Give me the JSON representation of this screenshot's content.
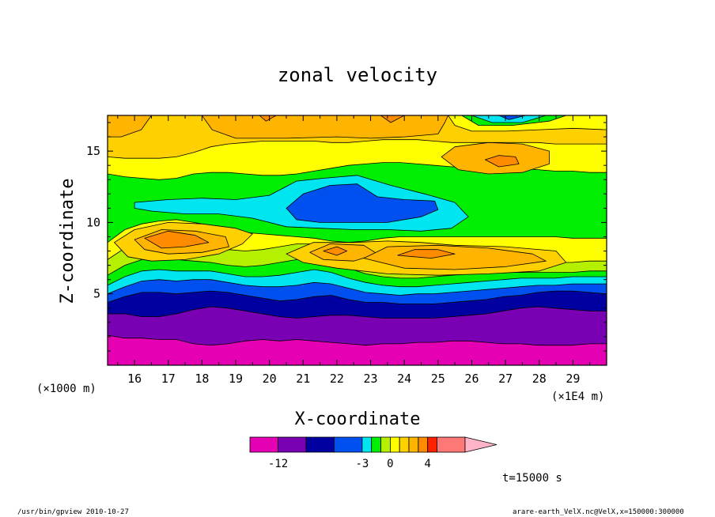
{
  "chart_data": {
    "type": "heatmap",
    "title": "zonal velocity",
    "xlabel": "X-coordinate",
    "ylabel": "Z-coordinate",
    "x_unit_left": "(×1000 m)",
    "x_unit_right": "(×1E4 m)",
    "xlim": [
      15.2,
      30
    ],
    "ylim": [
      0,
      17.5
    ],
    "x_ticks": [
      "16",
      "17",
      "18",
      "19",
      "20",
      "21",
      "22",
      "23",
      "24",
      "25",
      "26",
      "27",
      "28",
      "29"
    ],
    "y_ticks": [
      "5",
      "10",
      "15"
    ],
    "colorbar": {
      "labels": [
        "-12",
        "-3",
        "0",
        "4"
      ],
      "levels": [
        -15,
        -12,
        -9,
        -6,
        -3,
        -2,
        -1,
        0,
        1,
        2,
        3,
        4,
        5,
        8,
        11
      ],
      "colors": [
        "#e600b4",
        "#7a00b4",
        "#0000a0",
        "#0050f0",
        "#00e6f0",
        "#00ee00",
        "#b4f000",
        "#ffff00",
        "#ffd000",
        "#ffb400",
        "#ff8c00",
        "#ff2000",
        "#ff7878",
        "#ffb4c8"
      ]
    },
    "zones": [
      {
        "name": "z1",
        "color": "#e600b4",
        "top": [
          2.1,
          1.9,
          1.9,
          1.8,
          1.8,
          1.5,
          1.4,
          1.5,
          1.7,
          1.8,
          1.7,
          1.8,
          1.7,
          1.6,
          1.5,
          1.4,
          1.5,
          1.5,
          1.6,
          1.6,
          1.7,
          1.7,
          1.6,
          1.5,
          1.5,
          1.4,
          1.4,
          1.4,
          1.5,
          1.5
        ]
      },
      {
        "name": "z2",
        "color": "#7a00b4",
        "top": [
          3.6,
          3.6,
          3.4,
          3.4,
          3.6,
          3.9,
          4.1,
          4.0,
          3.8,
          3.6,
          3.4,
          3.3,
          3.4,
          3.5,
          3.5,
          3.4,
          3.3,
          3.3,
          3.3,
          3.3,
          3.4,
          3.5,
          3.6,
          3.8,
          4.0,
          4.1,
          4.0,
          3.9,
          3.8,
          3.8
        ]
      },
      {
        "name": "z3",
        "color": "#0000a0",
        "top": [
          4.4,
          4.8,
          5.1,
          5.1,
          5.0,
          5.1,
          5.2,
          5.1,
          4.9,
          4.7,
          4.5,
          4.6,
          4.8,
          4.9,
          4.6,
          4.4,
          4.4,
          4.3,
          4.3,
          4.3,
          4.4,
          4.5,
          4.6,
          4.8,
          4.9,
          5.1,
          5.2,
          5.2,
          5.1,
          5.0
        ]
      },
      {
        "name": "z4",
        "color": "#0050f0",
        "top": [
          5.0,
          5.5,
          5.9,
          6.0,
          5.9,
          6.0,
          6.0,
          5.8,
          5.6,
          5.5,
          5.5,
          5.6,
          5.8,
          5.7,
          5.4,
          5.1,
          5.0,
          4.9,
          5.0,
          5.0,
          5.1,
          5.2,
          5.3,
          5.4,
          5.5,
          5.6,
          5.6,
          5.7,
          5.7,
          5.7
        ]
      },
      {
        "name": "z5",
        "color": "#00e6f0",
        "top": [
          5.6,
          6.2,
          6.6,
          6.7,
          6.6,
          6.6,
          6.6,
          6.4,
          6.2,
          6.2,
          6.3,
          6.5,
          6.7,
          6.5,
          6.1,
          5.8,
          5.6,
          5.5,
          5.5,
          5.6,
          5.7,
          5.8,
          5.9,
          6.0,
          6.1,
          6.1,
          6.1,
          6.2,
          6.2,
          6.2
        ]
      },
      {
        "name": "z6",
        "color": "#00ee00",
        "top": [
          6.3,
          7.0,
          7.4,
          7.5,
          7.4,
          7.3,
          7.2,
          7.0,
          6.9,
          7.0,
          7.2,
          7.4,
          7.5,
          7.2,
          6.8,
          6.4,
          6.2,
          6.1,
          6.1,
          6.2,
          6.3,
          6.4,
          6.5,
          6.5,
          6.5,
          6.5,
          6.5,
          6.5,
          6.6,
          6.6
        ]
      },
      {
        "name": "z7",
        "color": "#b4f000",
        "top": [
          7.4,
          8.2,
          8.6,
          8.8,
          8.8,
          8.6,
          8.4,
          8.1,
          8.0,
          8.1,
          8.3,
          8.5,
          8.5,
          8.2,
          7.7,
          7.2,
          7.0,
          6.9,
          6.9,
          7.0,
          7.1,
          7.2,
          7.3,
          7.3,
          7.3,
          7.2,
          7.2,
          7.2,
          7.3,
          7.3
        ]
      },
      {
        "name": "z8",
        "color": "#ffff00",
        "top": [
          8.6,
          9.5,
          9.9,
          10.1,
          10.2,
          10.0,
          9.8,
          9.5,
          9.3,
          9.2,
          9.1,
          9.0,
          8.9,
          8.7,
          8.6,
          8.7,
          8.9,
          9.0,
          9.0,
          9.0,
          9.0,
          9.0,
          9.0,
          9.0,
          9.0,
          9.0,
          9.0,
          8.9,
          8.9,
          8.9
        ]
      },
      {
        "name": "z9",
        "color": "#00ee00",
        "top": [
          13.4,
          13.2,
          13.1,
          13.0,
          13.1,
          13.4,
          13.5,
          13.5,
          13.4,
          13.3,
          13.3,
          13.4,
          13.6,
          13.8,
          14.0,
          14.1,
          14.2,
          14.2,
          14.1,
          14.0,
          13.9,
          13.9,
          13.9,
          13.9,
          13.8,
          13.7,
          13.6,
          13.6,
          13.5,
          13.5
        ]
      },
      {
        "name": "z10",
        "color": "#ffff00",
        "top": [
          14.6,
          14.5,
          14.5,
          14.5,
          14.6,
          14.9,
          15.3,
          15.5,
          15.6,
          15.7,
          15.7,
          15.7,
          15.7,
          15.6,
          15.6,
          15.7,
          15.8,
          15.8,
          15.8,
          15.7,
          15.6,
          15.6,
          15.6,
          15.6,
          15.6,
          15.6,
          15.5,
          15.5,
          15.5,
          15.5
        ]
      },
      {
        "name": "z11",
        "color": "#ffd000",
        "top": [
          17.5,
          17.5,
          17.5,
          17.5,
          17.5,
          17.5,
          17.5,
          17.5,
          17.5,
          17.5,
          17.5,
          17.5,
          17.5,
          17.5,
          17.5,
          17.5,
          17.5,
          17.5,
          17.5,
          17.5,
          17.5,
          17.5,
          17.5,
          17.5,
          17.5,
          17.5,
          17.5,
          17.5,
          17.5,
          17.5
        ]
      }
    ],
    "features": [
      {
        "name": "cyan-band",
        "color": "#00e6f0",
        "pts": [
          [
            16.0,
            11.4
          ],
          [
            17.0,
            11.6
          ],
          [
            18.0,
            11.7
          ],
          [
            19.0,
            11.6
          ],
          [
            20.0,
            11.9
          ],
          [
            20.8,
            12.9
          ],
          [
            21.6,
            13.1
          ],
          [
            22.6,
            13.3
          ],
          [
            23.6,
            12.6
          ],
          [
            24.6,
            12.0
          ],
          [
            25.5,
            11.4
          ],
          [
            25.9,
            10.4
          ],
          [
            25.4,
            9.6
          ],
          [
            24.5,
            9.4
          ],
          [
            23.5,
            9.5
          ],
          [
            22.5,
            9.5
          ],
          [
            21.5,
            9.6
          ],
          [
            20.5,
            9.7
          ],
          [
            19.5,
            10.3
          ],
          [
            18.5,
            10.6
          ],
          [
            17.5,
            10.6
          ],
          [
            16.5,
            10.8
          ],
          [
            16.0,
            11.0
          ]
        ]
      },
      {
        "name": "blue-core",
        "color": "#0050f0",
        "pts": [
          [
            20.5,
            11.0
          ],
          [
            21.0,
            12.0
          ],
          [
            21.8,
            12.6
          ],
          [
            22.6,
            12.7
          ],
          [
            23.2,
            11.8
          ],
          [
            24.0,
            11.6
          ],
          [
            24.9,
            11.5
          ],
          [
            25.0,
            10.9
          ],
          [
            24.5,
            10.4
          ],
          [
            23.5,
            10.0
          ],
          [
            22.5,
            10.0
          ],
          [
            21.5,
            10.0
          ],
          [
            20.8,
            10.2
          ]
        ]
      },
      {
        "name": "gold-left",
        "color": "#ffd000",
        "pts": [
          [
            15.4,
            8.6
          ],
          [
            16.0,
            9.5
          ],
          [
            17.0,
            10.0
          ],
          [
            18.0,
            9.9
          ],
          [
            19.0,
            9.6
          ],
          [
            19.5,
            9.2
          ],
          [
            19.2,
            8.5
          ],
          [
            18.5,
            7.8
          ],
          [
            17.5,
            7.4
          ],
          [
            16.5,
            7.3
          ],
          [
            15.8,
            7.6
          ]
        ]
      },
      {
        "name": "dark-gold-left",
        "color": "#ffb400",
        "pts": [
          [
            16.0,
            8.8
          ],
          [
            16.8,
            9.5
          ],
          [
            17.8,
            9.4
          ],
          [
            18.7,
            9.0
          ],
          [
            18.8,
            8.3
          ],
          [
            18.0,
            7.9
          ],
          [
            17.0,
            7.8
          ],
          [
            16.3,
            8.1
          ]
        ]
      },
      {
        "name": "orange-left",
        "color": "#ff8c00",
        "pts": [
          [
            16.3,
            8.9
          ],
          [
            17.0,
            9.4
          ],
          [
            17.8,
            9.1
          ],
          [
            18.2,
            8.6
          ],
          [
            17.5,
            8.3
          ],
          [
            16.8,
            8.2
          ]
        ]
      },
      {
        "name": "gold-mid",
        "color": "#ffd000",
        "pts": [
          [
            20.5,
            7.8
          ],
          [
            21.3,
            8.6
          ],
          [
            22.5,
            8.6
          ],
          [
            23.5,
            8.7
          ],
          [
            24.5,
            8.6
          ],
          [
            25.5,
            8.4
          ],
          [
            27.0,
            8.3
          ],
          [
            28.5,
            8.0
          ],
          [
            28.8,
            7.2
          ],
          [
            28.0,
            6.6
          ],
          [
            26.5,
            6.4
          ],
          [
            25.0,
            6.3
          ],
          [
            23.5,
            6.4
          ],
          [
            22.0,
            6.8
          ],
          [
            21.0,
            7.2
          ]
        ]
      },
      {
        "name": "dark-gold-mid",
        "color": "#ffb400",
        "pts": [
          [
            21.2,
            7.9
          ],
          [
            21.8,
            8.5
          ],
          [
            22.8,
            8.4
          ],
          [
            23.2,
            7.8
          ],
          [
            22.5,
            7.3
          ],
          [
            21.6,
            7.4
          ]
        ]
      },
      {
        "name": "dark-gold-right",
        "color": "#ffb400",
        "pts": [
          [
            22.8,
            7.5
          ],
          [
            23.5,
            8.3
          ],
          [
            25.0,
            8.4
          ],
          [
            26.5,
            8.2
          ],
          [
            27.8,
            7.8
          ],
          [
            28.2,
            7.3
          ],
          [
            27.0,
            6.9
          ],
          [
            25.5,
            6.7
          ],
          [
            24.0,
            6.8
          ]
        ]
      },
      {
        "name": "orange-mid1",
        "color": "#ff8c00",
        "pts": [
          [
            21.6,
            8.0
          ],
          [
            22.0,
            8.3
          ],
          [
            22.3,
            8.0
          ],
          [
            22.0,
            7.7
          ]
        ]
      },
      {
        "name": "orange-mid2",
        "color": "#ff8c00",
        "pts": [
          [
            23.8,
            7.7
          ],
          [
            24.3,
            8.1
          ],
          [
            25.0,
            8.1
          ],
          [
            25.5,
            7.8
          ],
          [
            24.8,
            7.5
          ]
        ]
      },
      {
        "name": "dark-gold-top-right",
        "color": "#ffb400",
        "pts": [
          [
            25.1,
            14.6
          ],
          [
            25.5,
            15.3
          ],
          [
            26.5,
            15.6
          ],
          [
            27.5,
            15.5
          ],
          [
            28.3,
            15.0
          ],
          [
            28.3,
            14.1
          ],
          [
            27.5,
            13.5
          ],
          [
            26.5,
            13.4
          ],
          [
            25.6,
            13.7
          ]
        ]
      },
      {
        "name": "orange-top-right",
        "color": "#ff8c00",
        "pts": [
          [
            26.4,
            14.4
          ],
          [
            26.8,
            14.7
          ],
          [
            27.3,
            14.6
          ],
          [
            27.4,
            14.1
          ],
          [
            26.8,
            13.9
          ]
        ]
      },
      {
        "name": "dark-gold-top-mid",
        "color": "#ffb400",
        "pts": [
          [
            18.0,
            17.5
          ],
          [
            18.3,
            16.5
          ],
          [
            19.0,
            15.9
          ],
          [
            20.5,
            15.9
          ],
          [
            22.0,
            16.0
          ],
          [
            23.0,
            15.9
          ],
          [
            24.0,
            16.0
          ],
          [
            25.0,
            16.2
          ],
          [
            25.2,
            17.0
          ],
          [
            25.3,
            17.5
          ]
        ]
      },
      {
        "name": "orange-top-mid",
        "color": "#ff8c00",
        "pts": [
          [
            19.7,
            17.5
          ],
          [
            19.9,
            17.1
          ],
          [
            20.2,
            17.5
          ]
        ]
      },
      {
        "name": "orange-top-mid2",
        "color": "#ff8c00",
        "pts": [
          [
            23.3,
            17.5
          ],
          [
            23.6,
            17.0
          ],
          [
            24.0,
            17.5
          ]
        ]
      },
      {
        "name": "dark-gold-top-left",
        "color": "#ffb400",
        "pts": [
          [
            15.2,
            17.5
          ],
          [
            15.2,
            16.0
          ],
          [
            15.6,
            16.0
          ],
          [
            16.2,
            16.5
          ],
          [
            16.5,
            17.5
          ]
        ]
      },
      {
        "name": "yellow-top-right",
        "color": "#ffff00",
        "pts": [
          [
            25.3,
            17.5
          ],
          [
            25.5,
            16.8
          ],
          [
            26.0,
            16.4
          ],
          [
            27.0,
            16.4
          ],
          [
            28.0,
            16.5
          ],
          [
            29.0,
            16.6
          ],
          [
            30.0,
            16.5
          ],
          [
            30.0,
            17.5
          ]
        ]
      },
      {
        "name": "green-top-right",
        "color": "#00ee00",
        "pts": [
          [
            25.7,
            17.5
          ],
          [
            26.2,
            16.8
          ],
          [
            27.2,
            16.8
          ],
          [
            28.3,
            17.1
          ],
          [
            28.8,
            17.5
          ]
        ]
      },
      {
        "name": "cyan-top-right",
        "color": "#00e6f0",
        "pts": [
          [
            26.0,
            17.5
          ],
          [
            26.6,
            17.0
          ],
          [
            27.5,
            17.0
          ],
          [
            28.2,
            17.5
          ]
        ]
      },
      {
        "name": "blue-top-right",
        "color": "#0050f0",
        "pts": [
          [
            26.8,
            17.5
          ],
          [
            27.1,
            17.2
          ],
          [
            27.6,
            17.5
          ]
        ]
      }
    ]
  },
  "labels": {
    "time": "t=15000 s",
    "footer_left": "/usr/bin/gpview  2010-10-27",
    "footer_right": "arare-earth_VelX.nc@VelX,x=150000:300000"
  }
}
